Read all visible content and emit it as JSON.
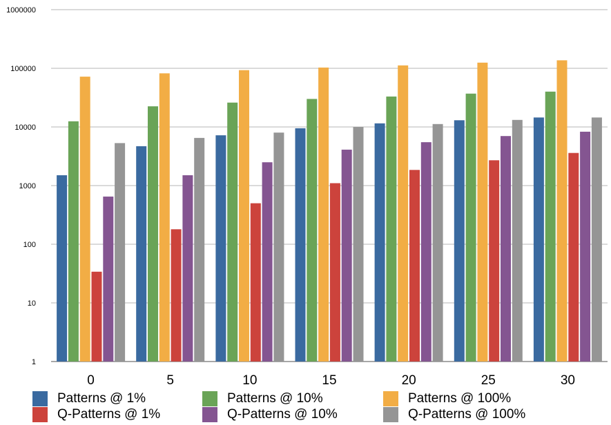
{
  "chart_data": {
    "type": "bar",
    "title": "",
    "xlabel": "",
    "ylabel": "",
    "yscale": "log",
    "ylim": [
      1,
      1000000
    ],
    "y_ticks": [
      "1",
      "10",
      "100",
      "1000",
      "10000",
      "100000",
      "1000000"
    ],
    "grid": true,
    "legend_position": "bottom",
    "categories": [
      "0",
      "5",
      "10",
      "15",
      "20",
      "25",
      "30"
    ],
    "series": [
      {
        "name": "Patterns @ 1%",
        "color": "#3a6aa0",
        "values": [
          1500,
          4700,
          7200,
          9500,
          11500,
          13000,
          14500
        ]
      },
      {
        "name": "Patterns @ 10%",
        "color": "#6aa457",
        "values": [
          12500,
          22500,
          26000,
          30000,
          33000,
          37000,
          40000
        ]
      },
      {
        "name": "Patterns @ 100%",
        "color": "#f2ad45",
        "values": [
          72000,
          82000,
          93000,
          103000,
          112000,
          125000,
          137000
        ]
      },
      {
        "name": "Q-Patterns @ 1%",
        "color": "#cc433c",
        "values": [
          34,
          180,
          500,
          1100,
          1850,
          2700,
          3600
        ]
      },
      {
        "name": "Q-Patterns @ 10%",
        "color": "#845591",
        "values": [
          650,
          1500,
          2500,
          4100,
          5500,
          7000,
          8300
        ]
      },
      {
        "name": "Q-Patterns @ 100%",
        "color": "#959595",
        "values": [
          5300,
          6500,
          8000,
          10000,
          11200,
          13200,
          14500
        ]
      }
    ]
  }
}
